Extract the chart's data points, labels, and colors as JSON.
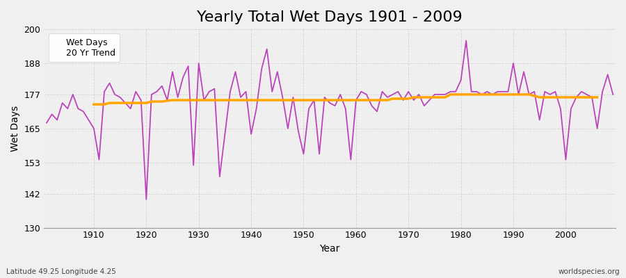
{
  "title": "Yearly Total Wet Days 1901 - 2009",
  "xlabel": "Year",
  "ylabel": "Wet Days",
  "subtitle": "Latitude 49.25 Longitude 4.25",
  "watermark": "worldspecies.org",
  "years": [
    1901,
    1902,
    1903,
    1904,
    1905,
    1906,
    1907,
    1908,
    1909,
    1910,
    1911,
    1912,
    1913,
    1914,
    1915,
    1916,
    1917,
    1918,
    1919,
    1920,
    1921,
    1922,
    1923,
    1924,
    1925,
    1926,
    1927,
    1928,
    1929,
    1930,
    1931,
    1932,
    1933,
    1934,
    1935,
    1936,
    1937,
    1938,
    1939,
    1940,
    1941,
    1942,
    1943,
    1944,
    1945,
    1946,
    1947,
    1948,
    1949,
    1950,
    1951,
    1952,
    1953,
    1954,
    1955,
    1956,
    1957,
    1958,
    1959,
    1960,
    1961,
    1962,
    1963,
    1964,
    1965,
    1966,
    1967,
    1968,
    1969,
    1970,
    1971,
    1972,
    1973,
    1974,
    1975,
    1976,
    1977,
    1978,
    1979,
    1980,
    1981,
    1982,
    1983,
    1984,
    1985,
    1986,
    1987,
    1988,
    1989,
    1990,
    1991,
    1992,
    1993,
    1994,
    1995,
    1996,
    1997,
    1998,
    1999,
    2000,
    2001,
    2002,
    2003,
    2004,
    2005,
    2006,
    2007,
    2008,
    2009
  ],
  "wet_days": [
    167,
    170,
    168,
    174,
    172,
    177,
    172,
    171,
    168,
    165,
    154,
    178,
    181,
    177,
    176,
    174,
    172,
    178,
    175,
    140,
    177,
    178,
    180,
    175,
    185,
    176,
    183,
    187,
    152,
    188,
    175,
    178,
    179,
    148,
    163,
    178,
    185,
    176,
    178,
    163,
    172,
    186,
    193,
    178,
    185,
    176,
    165,
    176,
    164,
    156,
    172,
    175,
    156,
    176,
    174,
    173,
    177,
    172,
    154,
    175,
    178,
    177,
    173,
    171,
    178,
    176,
    177,
    178,
    175,
    178,
    175,
    177,
    173,
    175,
    177,
    177,
    177,
    178,
    178,
    182,
    196,
    178,
    178,
    177,
    178,
    177,
    178,
    178,
    178,
    188,
    177,
    185,
    177,
    178,
    168,
    178,
    177,
    178,
    172,
    154,
    172,
    176,
    178,
    177,
    176,
    165,
    178,
    184,
    177
  ],
  "trend_values": [
    null,
    null,
    null,
    null,
    null,
    null,
    null,
    null,
    null,
    173.5,
    173.5,
    173.5,
    174,
    174,
    174,
    174,
    174,
    174,
    174,
    174,
    174.5,
    174.5,
    174.5,
    174.8,
    175,
    175,
    175,
    175,
    175,
    175,
    175,
    175,
    175,
    175,
    175,
    175,
    175,
    175,
    175,
    175,
    175,
    175,
    175,
    175,
    175,
    175,
    175,
    175,
    175,
    175,
    175,
    175,
    175,
    175,
    175,
    175,
    175,
    175,
    175,
    175,
    175,
    175,
    175,
    175,
    175,
    175,
    175.5,
    175.5,
    175.5,
    175.5,
    176,
    176,
    176,
    176,
    176,
    176,
    176,
    177,
    177,
    177,
    177,
    177,
    177,
    177,
    177,
    177,
    177,
    177,
    177,
    177,
    177,
    177,
    177,
    176.5,
    176,
    176,
    176,
    176,
    176,
    176,
    176,
    176,
    176,
    176,
    176,
    176
  ],
  "wet_days_color": "#BB44BB",
  "trend_color": "#FFA500",
  "plot_bg_color": "#F0F0F0",
  "fig_bg_color": "#F0F0F0",
  "grid_color": "#CCCCCC",
  "ylim": [
    130,
    200
  ],
  "yticks": [
    130,
    142,
    153,
    165,
    177,
    188,
    200
  ],
  "xticks": [
    1910,
    1920,
    1930,
    1940,
    1950,
    1960,
    1970,
    1980,
    1990,
    2000
  ],
  "title_fontsize": 16,
  "label_fontsize": 10,
  "tick_fontsize": 9,
  "legend_fontsize": 9,
  "wet_days_linewidth": 1.3,
  "trend_linewidth": 2.5
}
